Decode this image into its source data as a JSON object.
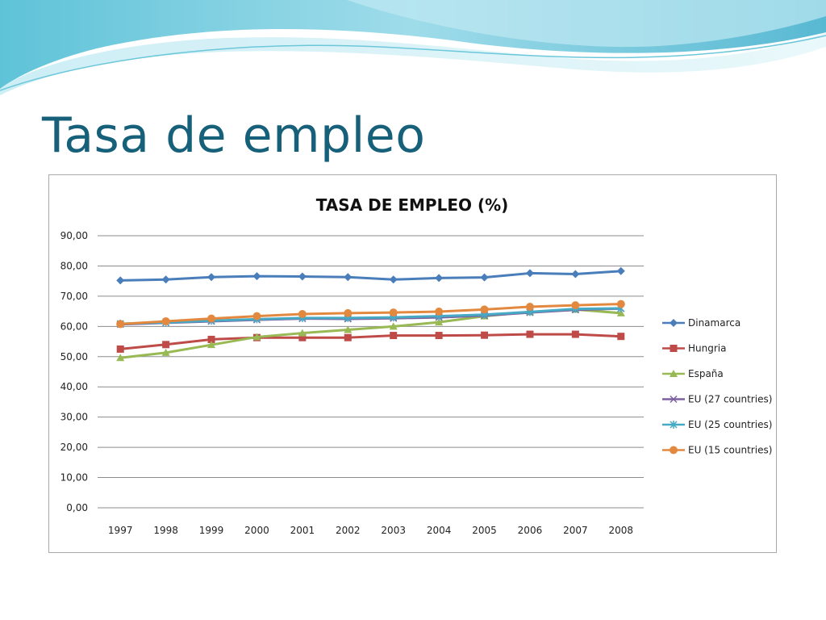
{
  "slide": {
    "title": "Tasa de empleo"
  },
  "chart_data": {
    "type": "line",
    "title": "TASA DE EMPLEO (%)",
    "xlabel": "",
    "ylabel": "",
    "ylim": [
      0,
      90
    ],
    "y_ticks": [
      "0,00",
      "10,00",
      "20,00",
      "30,00",
      "40,00",
      "50,00",
      "60,00",
      "70,00",
      "80,00",
      "90,00"
    ],
    "categories": [
      "1997",
      "1998",
      "1999",
      "2000",
      "2001",
      "2002",
      "2003",
      "2004",
      "2005",
      "2006",
      "2007",
      "2008"
    ],
    "grid": true,
    "legend_position": "right",
    "series": [
      {
        "name": "Dinamarca",
        "color": "#4a7ebb",
        "marker": "diamond",
        "values": [
          75.2,
          75.5,
          76.3,
          76.6,
          76.5,
          76.3,
          75.5,
          76.0,
          76.2,
          77.6,
          77.3,
          78.3
        ]
      },
      {
        "name": "Hungria",
        "color": "#be4b48",
        "marker": "square",
        "values": [
          52.5,
          54.0,
          55.7,
          56.3,
          56.3,
          56.3,
          57.0,
          57.0,
          57.1,
          57.4,
          57.4,
          56.7
        ]
      },
      {
        "name": "España",
        "color": "#98b954",
        "marker": "triangle",
        "values": [
          49.6,
          51.3,
          53.9,
          56.5,
          57.8,
          58.9,
          60.0,
          61.4,
          63.4,
          64.8,
          65.6,
          64.4
        ]
      },
      {
        "name": "EU (27 countries)",
        "color": "#7d60a0",
        "marker": "x",
        "values": [
          60.7,
          61.2,
          61.7,
          62.2,
          62.6,
          62.5,
          62.7,
          63.0,
          63.6,
          64.6,
          65.5,
          65.9
        ]
      },
      {
        "name": "EU (25 countries)",
        "color": "#46aac5",
        "marker": "star",
        "values": [
          60.9,
          61.3,
          61.9,
          62.4,
          62.8,
          62.8,
          63.0,
          63.4,
          63.9,
          64.8,
          65.8,
          66.0
        ]
      },
      {
        "name": "EU (15 countries)",
        "color": "#e3893f",
        "marker": "circle",
        "values": [
          60.8,
          61.7,
          62.6,
          63.4,
          64.1,
          64.4,
          64.6,
          64.9,
          65.6,
          66.5,
          67.0,
          67.4
        ]
      }
    ]
  }
}
